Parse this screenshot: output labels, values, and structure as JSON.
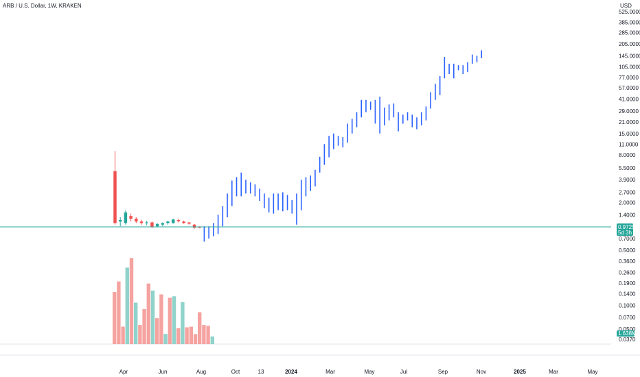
{
  "header": {
    "symbol_title": "ARB / U.S. Dollar, 1W, KRAKEN",
    "currency": "USD"
  },
  "colors": {
    "up": "#26a69a",
    "down": "#ef5350",
    "projection": "#2962ff",
    "volume_up": "#8fd3cb",
    "volume_down": "#f5a3a0",
    "price_line": "#26a69a",
    "badge": "#26a69a"
  },
  "last_price": {
    "value": "0.9725",
    "countdown": "5d 3h"
  },
  "volume_badge": "1.638M",
  "chart_data": {
    "type": "candlestick",
    "y_scale": "log",
    "y_ticks": [
      "525.0000",
      "385.0000",
      "285.0000",
      "205.0000",
      "145.0000",
      "105.0000",
      "77.0000",
      "57.0000",
      "41.0000",
      "29.0000",
      "21.0000",
      "15.0000",
      "11.0000",
      "8.0000",
      "5.5000",
      "3.9000",
      "2.7000",
      "2.0000",
      "1.4000",
      "0.7000",
      "0.5000",
      "0.3600",
      "0.2600",
      "0.1900",
      "0.1400",
      "0.1000",
      "0.0700",
      "0.0500",
      "0.0370"
    ],
    "x_ticks": [
      "Apr",
      "Jun",
      "Aug",
      "Oct",
      "13",
      "2024",
      "Mar",
      "May",
      "Jul",
      "Sep",
      "Nov",
      "2025",
      "Mar",
      "May"
    ],
    "candles": [
      {
        "o": 5.0,
        "h": 9.0,
        "l": 1.05,
        "c": 1.1
      },
      {
        "o": 1.15,
        "h": 1.3,
        "l": 1.0,
        "c": 1.2
      },
      {
        "o": 1.1,
        "h": 1.6,
        "l": 1.05,
        "c": 1.5
      },
      {
        "o": 1.35,
        "h": 1.45,
        "l": 1.15,
        "c": 1.25
      },
      {
        "o": 1.25,
        "h": 1.3,
        "l": 1.1,
        "c": 1.15
      },
      {
        "o": 1.15,
        "h": 1.2,
        "l": 1.05,
        "c": 1.1
      },
      {
        "o": 1.1,
        "h": 1.18,
        "l": 1.03,
        "c": 1.12
      },
      {
        "o": 1.12,
        "h": 1.15,
        "l": 0.95,
        "c": 0.98
      },
      {
        "o": 1.0,
        "h": 1.1,
        "l": 0.97,
        "c": 1.07
      },
      {
        "o": 1.05,
        "h": 1.12,
        "l": 1.0,
        "c": 1.1
      },
      {
        "o": 1.1,
        "h": 1.18,
        "l": 1.05,
        "c": 1.15
      },
      {
        "o": 1.1,
        "h": 1.25,
        "l": 1.08,
        "c": 1.22
      },
      {
        "o": 1.2,
        "h": 1.25,
        "l": 1.12,
        "c": 1.16
      },
      {
        "o": 1.15,
        "h": 1.18,
        "l": 1.08,
        "c": 1.1
      },
      {
        "o": 1.12,
        "h": 1.13,
        "l": 1.05,
        "c": 1.08
      },
      {
        "o": 1.05,
        "h": 1.07,
        "l": 0.93,
        "c": 0.96
      },
      {
        "o": 0.98,
        "h": 1.0,
        "l": 0.95,
        "c": 0.97
      }
    ],
    "projection_bars": [
      [
        0.64,
        1.0
      ],
      [
        0.7,
        1.0
      ],
      [
        0.75,
        1.1
      ],
      [
        0.8,
        1.4
      ],
      [
        1.0,
        1.8
      ],
      [
        1.3,
        2.6
      ],
      [
        1.8,
        3.8
      ],
      [
        2.4,
        4.2
      ],
      [
        2.4,
        4.8
      ],
      [
        2.6,
        3.9
      ],
      [
        2.6,
        3.6
      ],
      [
        2.4,
        3.4
      ],
      [
        2.1,
        3.0
      ],
      [
        1.7,
        2.6
      ],
      [
        1.5,
        2.3
      ],
      [
        1.45,
        2.6
      ],
      [
        1.6,
        2.6
      ],
      [
        1.55,
        2.7
      ],
      [
        1.6,
        2.5
      ],
      [
        1.45,
        2.15
      ],
      [
        1.05,
        2.6
      ],
      [
        1.6,
        3.9
      ],
      [
        2.4,
        4.2
      ],
      [
        2.8,
        4.4
      ],
      [
        3.2,
        5.2
      ],
      [
        4.8,
        7.6
      ],
      [
        6.0,
        11.0
      ],
      [
        7.5,
        14.0
      ],
      [
        9.5,
        15.0
      ],
      [
        10.5,
        14.0
      ],
      [
        10.0,
        13.5
      ],
      [
        11.5,
        20.0
      ],
      [
        15.0,
        23.0
      ],
      [
        18.0,
        28.0
      ],
      [
        24.0,
        40.0
      ],
      [
        28.0,
        40.0
      ],
      [
        30.0,
        38.0
      ],
      [
        20.0,
        40.0
      ],
      [
        15.0,
        44.0
      ],
      [
        19.0,
        32.0
      ],
      [
        22.0,
        35.0
      ],
      [
        24.0,
        36.0
      ],
      [
        16.0,
        28.0
      ],
      [
        20.0,
        26.0
      ],
      [
        22.0,
        28.0
      ],
      [
        18.0,
        26.0
      ],
      [
        17.0,
        24.0
      ],
      [
        19.0,
        28.0
      ],
      [
        22.0,
        33.0
      ],
      [
        31.0,
        50.0
      ],
      [
        40.0,
        64.0
      ],
      [
        46.0,
        80.0
      ],
      [
        75.0,
        140.0
      ],
      [
        85.0,
        115.0
      ],
      [
        75.0,
        115.0
      ],
      [
        95.0,
        110.0
      ],
      [
        85.0,
        110.0
      ],
      [
        90.0,
        120.0
      ],
      [
        115.0,
        150.0
      ],
      [
        120.0,
        145.0
      ],
      [
        135.0,
        170.0
      ]
    ],
    "volumes": [
      {
        "v": 0.245,
        "up": false
      },
      {
        "v": 0.295,
        "up": false
      },
      {
        "v": 0.082,
        "up": false
      },
      {
        "v": 0.36,
        "up": true
      },
      {
        "v": 0.405,
        "up": false
      },
      {
        "v": 0.195,
        "up": true
      },
      {
        "v": 0.09,
        "up": false
      },
      {
        "v": 0.165,
        "up": false
      },
      {
        "v": 0.285,
        "up": false
      },
      {
        "v": 0.252,
        "up": true
      },
      {
        "v": 0.122,
        "up": false
      },
      {
        "v": 0.234,
        "up": false
      },
      {
        "v": 0.048,
        "up": true
      },
      {
        "v": 0.218,
        "up": false
      },
      {
        "v": 0.225,
        "up": true
      },
      {
        "v": 0.075,
        "up": false
      },
      {
        "v": 0.198,
        "up": true
      },
      {
        "v": 0.079,
        "up": false
      },
      {
        "v": 0.082,
        "up": false
      },
      {
        "v": 0.047,
        "up": false
      },
      {
        "v": 0.15,
        "up": false
      },
      {
        "v": 0.09,
        "up": false
      },
      {
        "v": 0.086,
        "up": false
      },
      {
        "v": 0.036,
        "up": true
      }
    ]
  }
}
